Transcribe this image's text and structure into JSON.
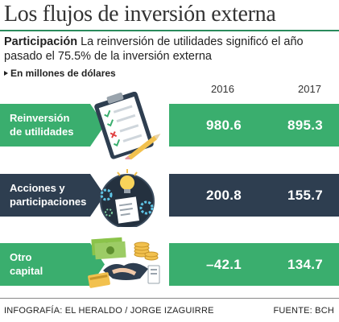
{
  "header": {
    "title": "Los flujos de inversión externa",
    "subtitle_lead": "Participación",
    "subtitle_text": " La reinversión de utilidades significó el año pasado el 75.5% de la inversión externa",
    "unit": "En millones de dólares"
  },
  "chart_data": {
    "type": "table",
    "columns": [
      "2016",
      "2017"
    ],
    "rows": [
      {
        "label_line1": "Reinversión",
        "label_line2": "de utilidades",
        "values": [
          "980.6",
          "895.3"
        ]
      },
      {
        "label_line1": "Acciones y",
        "label_line2": "participaciones",
        "values": [
          "200.8",
          "155.7"
        ]
      },
      {
        "label_line1": "Otro",
        "label_line2": "capital",
        "values": [
          "–42.1",
          "134.7"
        ]
      }
    ]
  },
  "colors": {
    "green": "#3aae6e",
    "navy": "#2e3e50",
    "title_rule": "#2a8a5c"
  },
  "icons": [
    "clipboard-checklist-icon",
    "lightbulb-gears-document-icon",
    "money-handshake-icon"
  ],
  "footer": {
    "credit": "INFOGRAFÍA: EL HERALDO / JORGE IZAGUIRRE",
    "source": "FUENTE: BCH"
  }
}
